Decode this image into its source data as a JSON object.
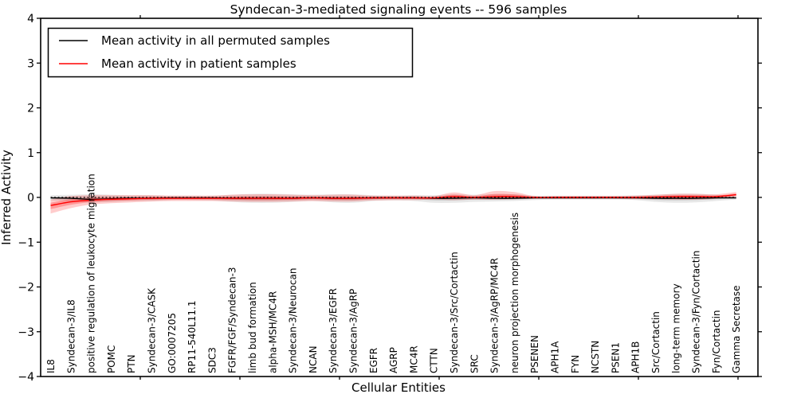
{
  "chart_data": {
    "type": "line",
    "title": "Syndecan-3-mediated signaling events -- 596 samples",
    "xlabel": "Cellular Entities",
    "ylabel": "Inferred Activity",
    "ylim": [
      -4,
      4
    ],
    "yticks": [
      4,
      3,
      2,
      1,
      0,
      -1,
      -2,
      -3,
      -4
    ],
    "x_major_tick_interval": 5,
    "grid": false,
    "legend_position": "upper left",
    "zero_line": true,
    "categories": [
      "IL8",
      "Syndecan-3/IL8",
      "positive regulation of leukocyte migration",
      "POMC",
      "PTN",
      "Syndecan-3/CASK",
      "GO:0007205",
      "RP11-540L11.1",
      "SDC3",
      "FGFR/FGF/Syndecan-3",
      "limb bud formation",
      "alpha-MSH/MC4R",
      "Syndecan-3/Neurocan",
      "NCAN",
      "Syndecan-3/EGFR",
      "Syndecan-3/AgRP",
      "EGFR",
      "AGRP",
      "MC4R",
      "CTTN",
      "Syndecan-3/Src/Cortactin",
      "SRC",
      "Syndecan-3/AgRP/MC4R",
      "neuron projection morphogenesis",
      "PSENEN",
      "APH1A",
      "FYN",
      "NCSTN",
      "PSEN1",
      "APH1B",
      "Src/Cortactin",
      "long-term memory",
      "Syndecan-3/Fyn/Cortactin",
      "Fyn/Cortactin",
      "Gamma Secretase"
    ],
    "series": [
      {
        "name": "Mean activity in all permuted samples",
        "color": "#000000",
        "band_color": "#000000",
        "values": [
          -0.01,
          -0.02,
          -0.04,
          -0.03,
          -0.02,
          -0.02,
          -0.01,
          -0.01,
          -0.01,
          -0.02,
          -0.02,
          -0.02,
          -0.02,
          -0.01,
          -0.02,
          -0.02,
          -0.01,
          -0.01,
          -0.01,
          -0.02,
          -0.02,
          -0.01,
          -0.02,
          -0.02,
          -0.01,
          -0.01,
          -0.01,
          -0.01,
          -0.01,
          -0.01,
          -0.02,
          -0.02,
          -0.02,
          -0.01,
          -0.01
        ],
        "band_upper": [
          0.05,
          0.06,
          0.07,
          0.06,
          0.05,
          0.05,
          0.04,
          0.04,
          0.04,
          0.06,
          0.08,
          0.08,
          0.07,
          0.06,
          0.07,
          0.07,
          0.05,
          0.04,
          0.05,
          0.05,
          0.07,
          0.06,
          0.07,
          0.07,
          0.04,
          0.04,
          0.04,
          0.04,
          0.04,
          0.05,
          0.06,
          0.08,
          0.08,
          0.06,
          0.04
        ],
        "band_lower": [
          -0.07,
          -0.09,
          -0.11,
          -0.1,
          -0.08,
          -0.08,
          -0.06,
          -0.06,
          -0.07,
          -0.1,
          -0.12,
          -0.12,
          -0.1,
          -0.08,
          -0.11,
          -0.12,
          -0.08,
          -0.07,
          -0.08,
          -0.12,
          -0.12,
          -0.1,
          -0.09,
          -0.08,
          -0.06,
          -0.05,
          -0.05,
          -0.05,
          -0.05,
          -0.06,
          -0.1,
          -0.12,
          -0.11,
          -0.08,
          -0.05
        ]
      },
      {
        "name": "Mean activity in patient samples",
        "color": "#ff0000",
        "band_color": "#ff0000",
        "values": [
          -0.18,
          -0.1,
          -0.06,
          -0.04,
          -0.03,
          -0.02,
          -0.02,
          -0.02,
          -0.02,
          -0.02,
          -0.02,
          -0.02,
          -0.02,
          -0.01,
          -0.02,
          -0.02,
          -0.01,
          -0.01,
          -0.01,
          -0.01,
          0.02,
          0.0,
          0.02,
          0.02,
          0.0,
          0.0,
          0.0,
          0.0,
          0.0,
          0.0,
          0.01,
          0.02,
          0.02,
          0.02,
          0.06
        ],
        "band_upper": [
          -0.05,
          0.03,
          0.05,
          0.05,
          0.05,
          0.05,
          0.04,
          0.04,
          0.04,
          0.06,
          0.07,
          0.07,
          0.06,
          0.05,
          0.06,
          0.06,
          0.04,
          0.04,
          0.04,
          0.03,
          0.11,
          0.05,
          0.14,
          0.12,
          0.03,
          0.03,
          0.03,
          0.03,
          0.03,
          0.04,
          0.06,
          0.08,
          0.08,
          0.07,
          0.12
        ],
        "band_lower": [
          -0.36,
          -0.24,
          -0.16,
          -0.13,
          -0.11,
          -0.09,
          -0.08,
          -0.08,
          -0.08,
          -0.09,
          -0.1,
          -0.1,
          -0.09,
          -0.08,
          -0.09,
          -0.09,
          -0.07,
          -0.06,
          -0.06,
          -0.05,
          -0.06,
          -0.05,
          -0.05,
          -0.04,
          -0.03,
          -0.03,
          -0.03,
          -0.03,
          -0.03,
          -0.04,
          -0.04,
          -0.05,
          -0.05,
          -0.03,
          0.01
        ]
      }
    ]
  },
  "legend": {
    "items": [
      {
        "label": "Mean activity in all permuted samples",
        "color": "#000000"
      },
      {
        "label": "Mean activity in patient samples",
        "color": "#ff0000"
      }
    ]
  }
}
